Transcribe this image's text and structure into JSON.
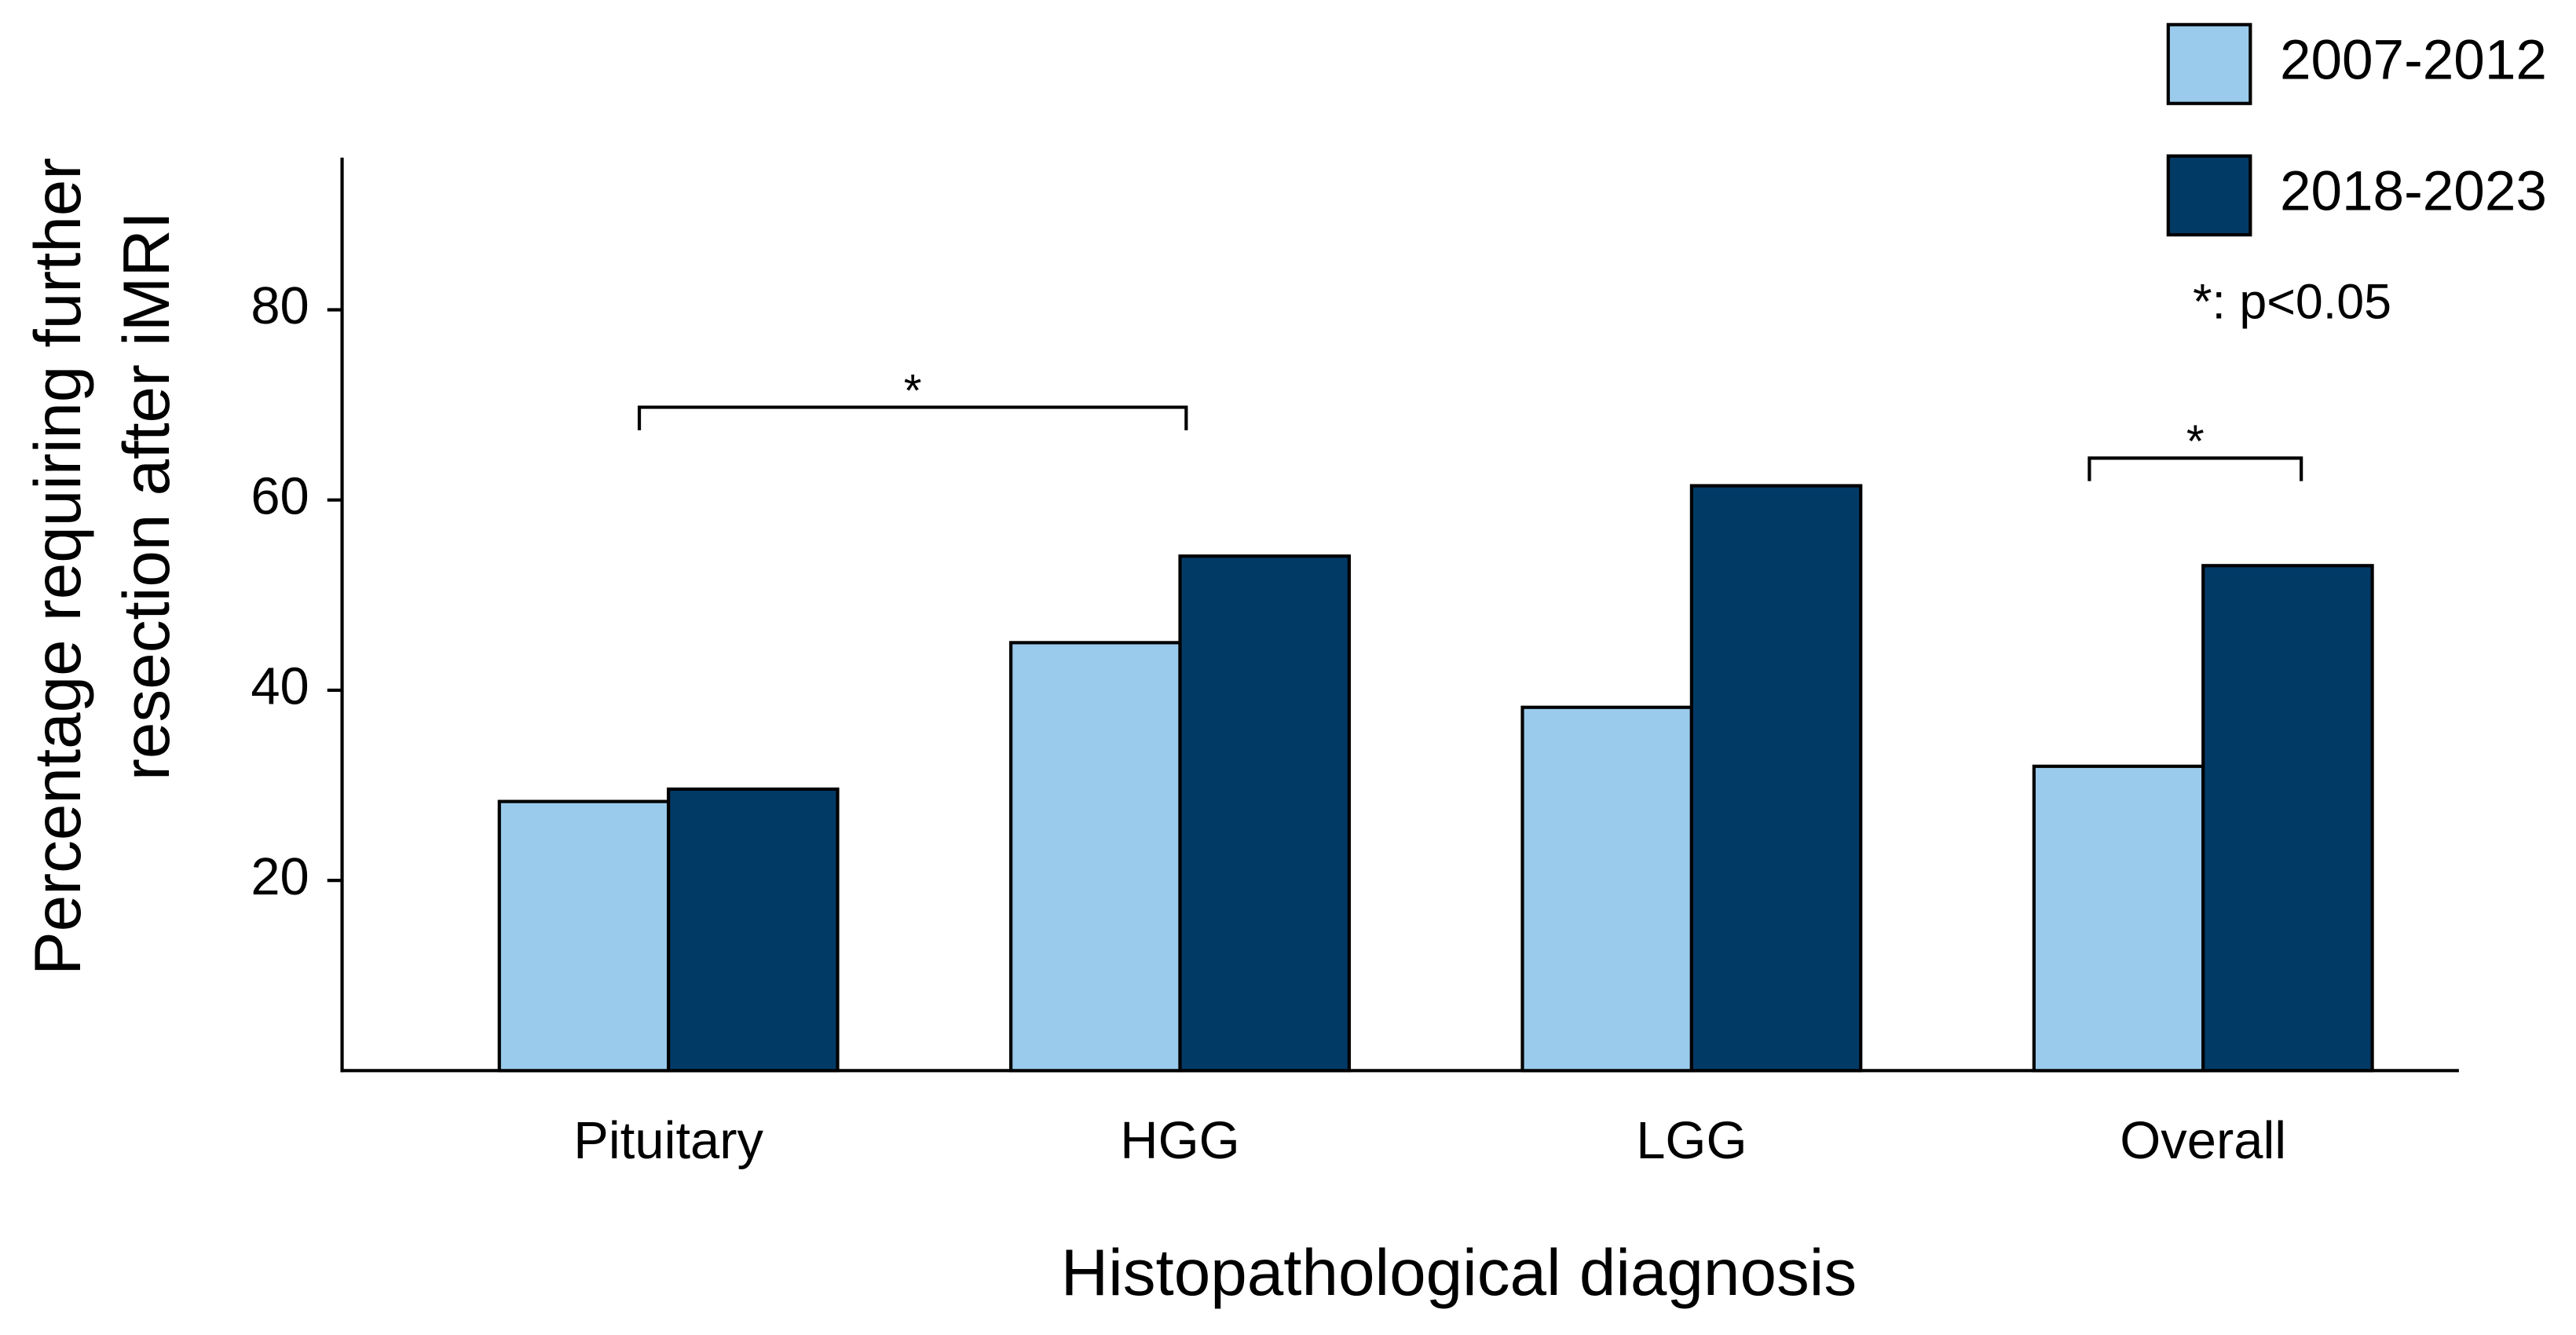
{
  "chart_data": {
    "type": "bar",
    "xlabel": "Histopathological diagnosis",
    "ylabel": [
      "Percentage requiring further",
      "resection after iMRI"
    ],
    "categories": [
      "Pituitary",
      "HGG",
      "LGG",
      "Overall"
    ],
    "series": [
      {
        "name": "2007-2012",
        "color": "#9ACBEC",
        "values": [
          28.3,
          45.0,
          38.2,
          32.0
        ]
      },
      {
        "name": "2018-2023",
        "color": "#023A66",
        "values": [
          29.6,
          54.1,
          61.5,
          53.1
        ]
      }
    ],
    "ylim": [
      0,
      96
    ],
    "yticks": [
      20,
      40,
      60,
      80
    ],
    "grid": false,
    "legend": "top-right",
    "annotations": [
      "*",
      "*",
      "*: p<0.05"
    ]
  }
}
